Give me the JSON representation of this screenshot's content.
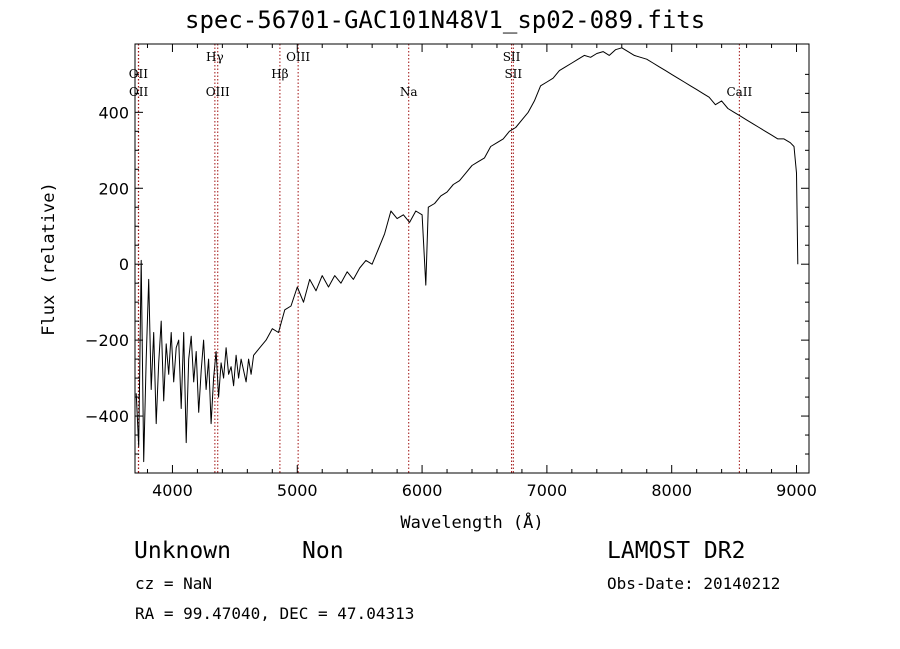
{
  "header": {
    "title": "spec-56701-GAC101N48V1_sp02-089.fits"
  },
  "chart_data": {
    "type": "line",
    "title": "spec-56701-GAC101N48V1_sp02-089.fits",
    "xlabel": "Wavelength (Å)",
    "ylabel": "Flux (relative)",
    "xlim": [
      3700,
      9100
    ],
    "ylim": [
      -550,
      580
    ],
    "x_ticks": [
      4000,
      5000,
      6000,
      7000,
      8000,
      9000
    ],
    "y_ticks": [
      -400,
      -200,
      0,
      200,
      400
    ],
    "series": [
      {
        "x": [
          3710,
          3730,
          3750,
          3770,
          3790,
          3810,
          3830,
          3850,
          3870,
          3890,
          3910,
          3930,
          3950,
          3970,
          3990,
          4010,
          4030,
          4050,
          4070,
          4090,
          4110,
          4130,
          4150,
          4170,
          4190,
          4210,
          4230,
          4250,
          4270,
          4290,
          4310,
          4330,
          4350,
          4370,
          4390,
          4410,
          4430,
          4450,
          4470,
          4490,
          4510,
          4530,
          4550,
          4570,
          4590,
          4610,
          4630,
          4650,
          4700,
          4750,
          4800,
          4850,
          4900,
          4950,
          5000,
          5050,
          5100,
          5150,
          5200,
          5250,
          5300,
          5350,
          5400,
          5450,
          5500,
          5550,
          5600,
          5650,
          5700,
          5750,
          5800,
          5850,
          5900,
          5950,
          6000,
          6030,
          6050,
          6100,
          6150,
          6200,
          6250,
          6300,
          6350,
          6400,
          6450,
          6500,
          6550,
          6600,
          6650,
          6700,
          6750,
          6800,
          6850,
          6900,
          6950,
          7000,
          7050,
          7100,
          7150,
          7200,
          7250,
          7300,
          7350,
          7400,
          7450,
          7500,
          7550,
          7600,
          7650,
          7700,
          7750,
          7800,
          7850,
          7900,
          7950,
          8000,
          8050,
          8100,
          8150,
          8200,
          8250,
          8300,
          8350,
          8400,
          8450,
          8500,
          8550,
          8600,
          8650,
          8700,
          8750,
          8800,
          8850,
          8900,
          8950,
          8980,
          9000,
          9010
        ],
        "y": [
          -340,
          -480,
          10,
          -520,
          -250,
          -40,
          -330,
          -180,
          -420,
          -260,
          -150,
          -360,
          -210,
          -290,
          -180,
          -310,
          -220,
          -200,
          -380,
          -180,
          -470,
          -250,
          -190,
          -310,
          -230,
          -390,
          -280,
          -200,
          -330,
          -250,
          -420,
          -300,
          -230,
          -350,
          -260,
          -300,
          -220,
          -290,
          -270,
          -320,
          -240,
          -300,
          -250,
          -280,
          -310,
          -250,
          -290,
          -240,
          -220,
          -200,
          -170,
          -180,
          -120,
          -110,
          -60,
          -100,
          -40,
          -70,
          -30,
          -60,
          -30,
          -50,
          -20,
          -40,
          -10,
          10,
          0,
          40,
          80,
          140,
          120,
          130,
          110,
          140,
          130,
          -55,
          150,
          160,
          180,
          190,
          210,
          220,
          240,
          260,
          270,
          280,
          310,
          320,
          330,
          350,
          360,
          380,
          400,
          430,
          470,
          480,
          490,
          510,
          520,
          530,
          540,
          550,
          545,
          555,
          560,
          550,
          565,
          570,
          560,
          550,
          545,
          540,
          530,
          520,
          510,
          500,
          490,
          480,
          470,
          460,
          450,
          440,
          420,
          430,
          410,
          400,
          390,
          380,
          370,
          360,
          350,
          340,
          330,
          330,
          320,
          310,
          240,
          0
        ]
      }
    ],
    "annotations": [
      {
        "label": "OII",
        "x": 3727,
        "row": 3
      },
      {
        "label": "OII",
        "x": 3729,
        "row": 4
      },
      {
        "label": "Hγ",
        "x": 4340,
        "row": 1
      },
      {
        "label": "OIII",
        "x": 4363,
        "row": 4
      },
      {
        "label": "Hβ",
        "x": 4861,
        "row": 3
      },
      {
        "label": "OIII",
        "x": 5007,
        "row": 1
      },
      {
        "label": "Na",
        "x": 5893,
        "row": 4
      },
      {
        "label": "SII",
        "x": 6717,
        "row": 1
      },
      {
        "label": "SII",
        "x": 6731,
        "row": 3
      },
      {
        "label": "CaII",
        "x": 8542,
        "row": 4
      }
    ]
  },
  "footer": {
    "class": "Unknown",
    "subclass": "Non",
    "survey": "LAMOST DR2",
    "cz": "cz = NaN",
    "obs_date": "Obs-Date: 20140212",
    "radec": "RA =  99.47040, DEC =  47.04313"
  },
  "colors": {
    "line": "#000000",
    "marker": "#a01010",
    "axis": "#000000"
  }
}
